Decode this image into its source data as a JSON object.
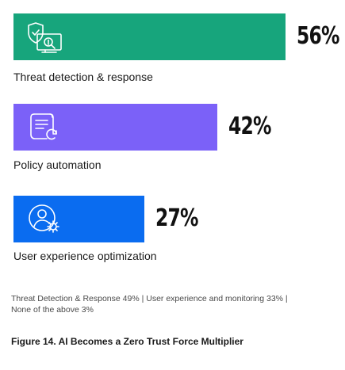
{
  "chart_data": {
    "type": "bar",
    "orientation": "horizontal",
    "categories": [
      "Threat detection & response",
      "Policy automation",
      "User experience optimization"
    ],
    "values": [
      56,
      42,
      27
    ],
    "value_labels": [
      "56%",
      "42%",
      "27%"
    ],
    "unit": "%",
    "colors": [
      "#17a57c",
      "#7b61f8",
      "#0a6cf0"
    ],
    "icons": [
      "shield-monitor-icon",
      "document-refresh-icon",
      "user-gear-icon"
    ],
    "legend": "none",
    "grid": false
  },
  "footnote": {
    "line1": "Threat Detection & Response  49%  |  User experience and monitoring  33%  |",
    "line2": "None of the above 3%"
  },
  "caption": "Figure 14. AI Becomes a Zero Trust Force Multiplier"
}
